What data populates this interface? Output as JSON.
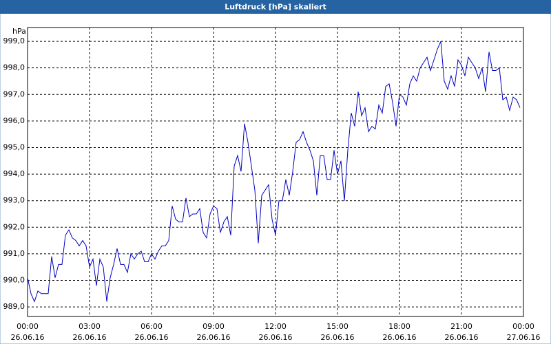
{
  "chart_data": {
    "type": "line",
    "title": "Luftdruck [hPa] skaliert",
    "y_unit": "hPa",
    "x": [
      0,
      10,
      20,
      30,
      40,
      50,
      60,
      70,
      80,
      90,
      100,
      110,
      120,
      130,
      140,
      150,
      160,
      170,
      180,
      190,
      200,
      210,
      220,
      230,
      240,
      250,
      260,
      270,
      280,
      290,
      300,
      310,
      320,
      330,
      340,
      350,
      360,
      370,
      380,
      390,
      400,
      410,
      420,
      430,
      440,
      450,
      460,
      470,
      480,
      490,
      500,
      510,
      520,
      530,
      540,
      550,
      560,
      570,
      580,
      590,
      600,
      610,
      620,
      630,
      640,
      650,
      660,
      670,
      680,
      690,
      700,
      710,
      720,
      730,
      740,
      750,
      760,
      770,
      780,
      790,
      800,
      810,
      820,
      830,
      840,
      850,
      860,
      870,
      880,
      890,
      900,
      910,
      920,
      930,
      940,
      950,
      960,
      970,
      980,
      990,
      1000,
      1010,
      1020,
      1030,
      1040,
      1050,
      1060,
      1070,
      1080,
      1090,
      1100,
      1110,
      1120,
      1130,
      1140,
      1150,
      1160,
      1170,
      1180,
      1190,
      1200,
      1210,
      1220,
      1230,
      1240,
      1250,
      1260,
      1270,
      1280,
      1290,
      1300,
      1310,
      1320,
      1330,
      1340,
      1350,
      1360,
      1370,
      1380,
      1390,
      1400,
      1410,
      1420,
      1430
    ],
    "series": [
      {
        "name": "Luftdruck",
        "color": "#0000c0",
        "values": [
          990.1,
          989.5,
          989.2,
          989.6,
          989.5,
          989.5,
          989.5,
          990.9,
          990.1,
          990.6,
          990.6,
          991.7,
          991.9,
          991.6,
          991.5,
          991.3,
          991.5,
          991.3,
          990.5,
          990.8,
          989.8,
          990.8,
          990.5,
          989.2,
          990.1,
          990.6,
          991.2,
          990.6,
          990.6,
          990.3,
          991.0,
          990.8,
          991.0,
          991.1,
          990.7,
          990.7,
          991.0,
          990.8,
          991.1,
          991.3,
          991.3,
          991.5,
          992.8,
          992.3,
          992.2,
          992.2,
          993.1,
          992.4,
          992.5,
          992.5,
          992.7,
          991.8,
          991.6,
          992.5,
          992.8,
          992.7,
          991.8,
          992.2,
          992.4,
          991.7,
          994.3,
          994.7,
          994.1,
          995.9,
          995.2,
          994.3,
          993.4,
          991.4,
          993.2,
          993.4,
          993.6,
          992.3,
          991.7,
          993.0,
          993.0,
          993.8,
          993.2,
          994.1,
          995.2,
          995.3,
          995.6,
          995.2,
          994.9,
          994.5,
          993.2,
          994.7,
          994.7,
          993.8,
          993.8,
          994.9,
          994.0,
          994.5,
          993.0,
          994.9,
          996.3,
          995.8,
          997.1,
          996.2,
          996.5,
          995.6,
          995.8,
          995.7,
          996.6,
          996.3,
          997.3,
          997.4,
          996.7,
          995.8,
          997.0,
          996.9,
          996.6,
          997.4,
          997.7,
          997.5,
          998.0,
          998.2,
          998.4,
          997.9,
          998.3,
          998.7,
          999.0,
          997.5,
          997.2,
          997.7,
          997.3,
          998.3,
          998.1,
          997.7,
          998.4,
          998.2,
          998.0,
          997.6,
          998.0,
          997.1,
          998.6,
          997.9,
          997.9,
          998.0,
          996.8,
          996.9,
          996.4,
          996.9,
          996.8,
          996.5
        ]
      }
    ],
    "xlim": [
      0,
      1440
    ],
    "xticks": [
      {
        "value": 0,
        "label": "00:00",
        "date": "26.06.16"
      },
      {
        "value": 180,
        "label": "03:00",
        "date": "26.06.16"
      },
      {
        "value": 360,
        "label": "06:00",
        "date": "26.06.16"
      },
      {
        "value": 540,
        "label": "09:00",
        "date": "26.06.16"
      },
      {
        "value": 720,
        "label": "12:00",
        "date": "26.06.16"
      },
      {
        "value": 900,
        "label": "15:00",
        "date": "26.06.16"
      },
      {
        "value": 1080,
        "label": "18:00",
        "date": "26.06.16"
      },
      {
        "value": 1260,
        "label": "21:00",
        "date": "26.06.16"
      },
      {
        "value": 1440,
        "label": "00:00",
        "date": "27.06.16"
      }
    ],
    "ylim": [
      988.64,
      999.52
    ],
    "yticks": [
      {
        "value": 989,
        "label": "989,0"
      },
      {
        "value": 990,
        "label": "990,0"
      },
      {
        "value": 991,
        "label": "991,0"
      },
      {
        "value": 992,
        "label": "992,0"
      },
      {
        "value": 993,
        "label": "993,0"
      },
      {
        "value": 994,
        "label": "994,0"
      },
      {
        "value": 995,
        "label": "995,0"
      },
      {
        "value": 996,
        "label": "996,0"
      },
      {
        "value": 997,
        "label": "997,0"
      },
      {
        "value": 998,
        "label": "998,0"
      },
      {
        "value": 999,
        "label": "999,0"
      }
    ],
    "grid": true
  }
}
